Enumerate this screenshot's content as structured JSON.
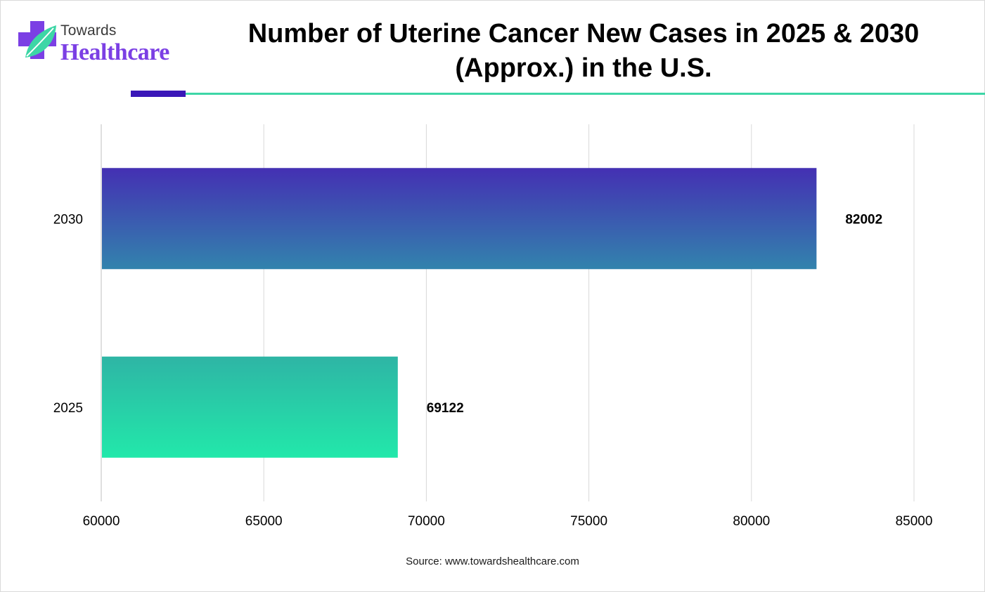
{
  "logo": {
    "line1": "Towards",
    "line2": "Healthcare",
    "icon": "cross-leaf-icon",
    "colors": {
      "cross": "#7b3fe4",
      "leaf": "#3dd6a6"
    }
  },
  "title": {
    "line1": "Number of Uterine Cancer New Cases in 2025 & 2030",
    "line2": "(Approx.) in the U.S."
  },
  "source": "Source: www.towardshealthcare.com",
  "chart_data": {
    "type": "bar",
    "orientation": "horizontal",
    "categories": [
      "2030",
      "2025"
    ],
    "values": [
      82002,
      69122
    ],
    "data_labels": [
      "82002",
      "69122"
    ],
    "xlim": [
      60000,
      85000
    ],
    "x_ticks": [
      "60000",
      "65000",
      "70000",
      "75000",
      "80000",
      "85000"
    ],
    "x_tick_values": [
      60000,
      65000,
      70000,
      75000,
      80000,
      85000
    ],
    "grid": true,
    "legend": "none",
    "title": "Number of Uterine Cancer New Cases in 2025 & 2030 (Approx.) in the U.S.",
    "bar_gradients": [
      {
        "top": "#4430b3",
        "bottom": "#3283ad"
      },
      {
        "top": "#2eb5a5",
        "bottom": "#22e8aa"
      }
    ]
  }
}
